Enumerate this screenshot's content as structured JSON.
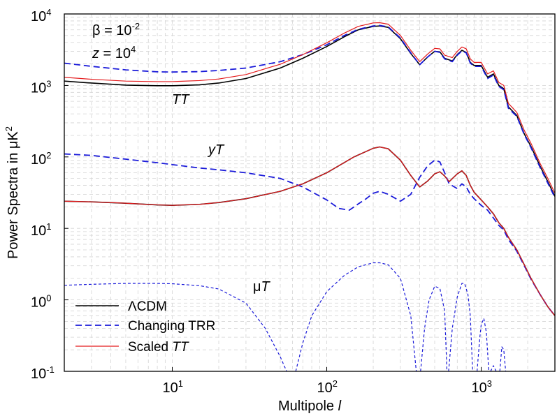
{
  "chart_data": {
    "type": "line",
    "xlabel": {
      "text": "Multipole ",
      "italic": "l"
    },
    "ylabel": {
      "text": "Power Spectra in μK",
      "sup": "2"
    },
    "x_scale": "log",
    "y_scale": "log",
    "xlim": [
      2,
      3000
    ],
    "ylim": [
      0.1,
      10000
    ],
    "x_ticks": [
      {
        "value": 10,
        "base": "10",
        "exp": "1"
      },
      {
        "value": 100,
        "base": "10",
        "exp": "2"
      },
      {
        "value": 1000,
        "base": "10",
        "exp": "3"
      }
    ],
    "y_ticks": [
      {
        "value": 0.1,
        "base": "10",
        "exp": "-1"
      },
      {
        "value": 1,
        "base": "10",
        "exp": "0"
      },
      {
        "value": 10,
        "base": "10",
        "exp": "1"
      },
      {
        "value": 100,
        "base": "10",
        "exp": "2"
      },
      {
        "value": 1000,
        "base": "10",
        "exp": "3"
      },
      {
        "value": 10000,
        "base": "10",
        "exp": "4"
      }
    ],
    "grid": true,
    "legend_position": "bottom-left",
    "annotations": {
      "beta": {
        "symbol": "β",
        "rest": " = 10",
        "sup": "-2"
      },
      "z": {
        "symbol": "z",
        "rest": " = 10",
        "sup": "4"
      },
      "tt": "TT",
      "yt_prefix": "y",
      "yt_suffix": "T",
      "mut_prefix": "μ",
      "mut_suffix": "T"
    },
    "series": [
      {
        "name": "ΛCDM",
        "name_plain": "ΛCDM",
        "group": "TT",
        "color": "#000000",
        "dash": "solid",
        "x": [
          2,
          3,
          5,
          8,
          10,
          15,
          20,
          30,
          50,
          70,
          100,
          130,
          160,
          200,
          220,
          250,
          300,
          350,
          400,
          450,
          500,
          540,
          580,
          650,
          700,
          750,
          800,
          850,
          900,
          1000,
          1100,
          1200,
          1300,
          1400,
          1500,
          1700,
          1900,
          2100,
          2400,
          2700,
          3000
        ],
        "y": [
          1150,
          1080,
          1010,
          990,
          990,
          1020,
          1080,
          1250,
          1750,
          2400,
          3500,
          4800,
          6000,
          6700,
          6800,
          6500,
          4500,
          2800,
          1950,
          2500,
          3000,
          2950,
          2400,
          2200,
          2700,
          3100,
          2900,
          2100,
          1900,
          1900,
          1300,
          1450,
          1000,
          900,
          500,
          380,
          210,
          140,
          75,
          45,
          28
        ]
      },
      {
        "name": "Changing TRR",
        "name_plain": "Changing TRR",
        "group": "TT",
        "color": "#1a1ad9",
        "dash": "dashed",
        "x": [
          2,
          3,
          5,
          8,
          10,
          15,
          20,
          30,
          50,
          70,
          100,
          130,
          160,
          200,
          220,
          250,
          300,
          350,
          400,
          450,
          500,
          540,
          580,
          650,
          700,
          750,
          800,
          850,
          900,
          1000,
          1100,
          1200,
          1300,
          1400,
          1500,
          1700,
          1900,
          2100,
          2400,
          2700,
          3000
        ],
        "y": [
          2050,
          1850,
          1650,
          1550,
          1540,
          1560,
          1620,
          1750,
          2150,
          2700,
          3700,
          5000,
          6100,
          6800,
          6900,
          6600,
          4600,
          2850,
          1950,
          2500,
          3000,
          2900,
          2350,
          2150,
          2650,
          3050,
          2850,
          2050,
          1850,
          1850,
          1250,
          1400,
          970,
          870,
          480,
          370,
          205,
          135,
          72,
          43,
          27
        ]
      },
      {
        "name": "Scaled TT",
        "name_plain": "Scaled ",
        "name_italic": "TT",
        "group": "TT",
        "color": "#e41a1c",
        "dash": "solid",
        "x": [
          2,
          3,
          5,
          8,
          10,
          15,
          20,
          30,
          50,
          70,
          100,
          130,
          160,
          200,
          220,
          250,
          300,
          350,
          400,
          450,
          500,
          540,
          580,
          650,
          700,
          750,
          800,
          850,
          900,
          1000,
          1100,
          1200,
          1300,
          1400,
          1500,
          1700,
          1900,
          2100,
          2400,
          2700,
          3000
        ],
        "y": [
          1300,
          1220,
          1150,
          1130,
          1130,
          1170,
          1230,
          1420,
          1980,
          2700,
          3950,
          5400,
          6700,
          7500,
          7550,
          7200,
          5000,
          3100,
          2150,
          2750,
          3300,
          3250,
          2650,
          2450,
          3000,
          3450,
          3250,
          2350,
          2100,
          2100,
          1450,
          1600,
          1100,
          1000,
          560,
          420,
          235,
          155,
          82,
          50,
          31
        ]
      },
      {
        "name": "ΛCDM",
        "group": "yT",
        "color": "#000000",
        "dash": "solid",
        "x": [
          2,
          3,
          5,
          8,
          10,
          15,
          20,
          30,
          50,
          70,
          100,
          150,
          200,
          220,
          250,
          300,
          350,
          400,
          450,
          500,
          540,
          580,
          620,
          700,
          750,
          800,
          850,
          900,
          1000,
          1100,
          1200,
          1300,
          1400,
          1500,
          1700,
          1900,
          2100,
          2400,
          2700,
          3000
        ],
        "y": [
          24,
          23.5,
          22.5,
          21.3,
          21,
          21.7,
          23,
          26,
          33,
          42,
          60,
          100,
          132,
          138,
          130,
          90,
          55,
          38,
          46,
          58,
          62,
          54,
          45,
          58,
          64,
          55,
          40,
          32,
          25,
          20,
          16,
          12,
          10,
          7.5,
          5,
          3.1,
          2,
          1.2,
          0.8,
          0.6
        ]
      },
      {
        "name": "Changing TRR",
        "group": "yT",
        "color": "#1a1ad9",
        "dash": "dashed",
        "x": [
          2,
          3,
          5,
          8,
          10,
          15,
          20,
          30,
          50,
          70,
          100,
          120,
          140,
          160,
          180,
          200,
          220,
          250,
          300,
          350,
          400,
          450,
          500,
          540,
          580,
          620,
          700,
          750,
          800,
          850,
          900,
          1000,
          1100,
          1200,
          1300,
          1400,
          1500,
          1700,
          1900,
          2100,
          2400,
          2700,
          3000
        ],
        "y": [
          110,
          105,
          93,
          83,
          78,
          70,
          66,
          60,
          50,
          38,
          25,
          19,
          18,
          22,
          26,
          31,
          33,
          30,
          24,
          30,
          52,
          75,
          90,
          85,
          60,
          42,
          36,
          42,
          38,
          30,
          26,
          21,
          18,
          14,
          11,
          9.5,
          7,
          4.8,
          3,
          1.95,
          1.2,
          0.8,
          0.6
        ]
      },
      {
        "name": "Scaled TT",
        "group": "yT",
        "color": "#e41a1c",
        "dash": "solid",
        "x": [
          2,
          3,
          5,
          8,
          10,
          15,
          20,
          30,
          50,
          70,
          100,
          150,
          200,
          220,
          250,
          300,
          350,
          400,
          450,
          500,
          540,
          580,
          620,
          700,
          750,
          800,
          850,
          900,
          1000,
          1100,
          1200,
          1300,
          1400,
          1500,
          1700,
          1900,
          2100,
          2400,
          2700,
          3000
        ],
        "y": [
          24,
          23.5,
          22.5,
          21.3,
          21,
          21.7,
          23,
          26,
          33,
          42,
          60,
          100,
          132,
          138,
          130,
          90,
          55,
          38,
          46,
          58,
          62,
          54,
          45,
          58,
          64,
          55,
          40,
          32,
          25,
          20,
          16,
          12,
          10,
          7.5,
          5,
          3.1,
          2,
          1.2,
          0.8,
          0.6
        ]
      },
      {
        "name": "Changing TRR",
        "group": "μT",
        "color": "#1a1ad9",
        "dash": "dashed",
        "segments": [
          {
            "x": [
              2,
              3,
              5,
              8,
              10,
              15,
              20,
              30,
              40,
              50,
              55
            ],
            "y": [
              1.6,
              1.65,
              1.7,
              1.7,
              1.68,
              1.58,
              1.42,
              0.9,
              0.4,
              0.16,
              0.1
            ]
          },
          {
            "x": [
              63,
              70,
              80,
              100,
              130,
              160,
              200,
              220,
              250,
              300,
              350,
              380
            ],
            "y": [
              0.1,
              0.25,
              0.6,
              1.3,
              2.2,
              2.9,
              3.3,
              3.3,
              3.1,
              2.0,
              0.6,
              0.1
            ]
          },
          {
            "x": [
              405,
              430,
              460,
              500,
              540,
              580,
              600
            ],
            "y": [
              0.1,
              0.4,
              1.0,
              1.55,
              1.45,
              0.7,
              0.1
            ]
          },
          {
            "x": [
              615,
              650,
              700,
              750,
              780,
              820,
              850,
              880
            ],
            "y": [
              0.1,
              0.4,
              1.1,
              1.7,
              1.7,
              1.2,
              0.6,
              0.1
            ]
          },
          {
            "x": [
              940,
              980,
              1000,
              1040,
              1080,
              1120
            ],
            "y": [
              0.1,
              0.3,
              0.45,
              0.55,
              0.35,
              0.1
            ]
          },
          {
            "x": [
              1150,
              1200,
              1250,
              1320
            ],
            "y": [
              0.1,
              0.12,
              0.1,
              0.1
            ]
          },
          {
            "x": [
              1320,
              1360,
              1400,
              1440
            ],
            "y": [
              0.1,
              0.22,
              0.2,
              0.1
            ]
          }
        ]
      }
    ]
  }
}
